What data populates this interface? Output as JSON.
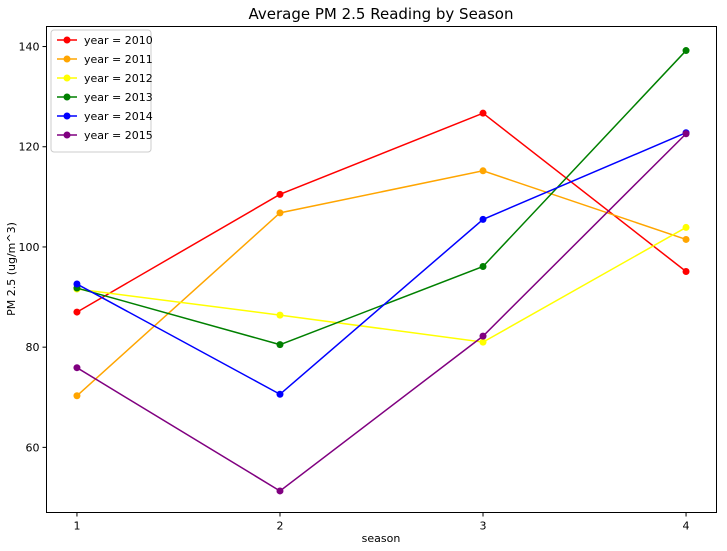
{
  "chart_data": {
    "type": "line",
    "title": "Average PM 2.5 Reading by Season",
    "xlabel": "season",
    "ylabel": "PM 2.5 (ug/m^3)",
    "x": [
      1,
      2,
      3,
      4
    ],
    "xlim": [
      0.85,
      4.15
    ],
    "ylim": [
      47,
      144
    ],
    "xticks": [
      1,
      2,
      3,
      4
    ],
    "yticks": [
      60,
      80,
      100,
      120,
      140
    ],
    "grid": false,
    "legend_position": "top-left",
    "series": [
      {
        "name": "year = 2010",
        "color": "#ff0000",
        "values": [
          87.0,
          110.5,
          126.7,
          95.1
        ]
      },
      {
        "name": "year = 2011",
        "color": "#ffa500",
        "values": [
          70.3,
          106.8,
          115.2,
          101.5
        ]
      },
      {
        "name": "year = 2012",
        "color": "#ffff00",
        "values": [
          91.6,
          86.4,
          81.0,
          103.9
        ]
      },
      {
        "name": "year = 2013",
        "color": "#008000",
        "values": [
          91.8,
          80.5,
          96.1,
          139.2
        ]
      },
      {
        "name": "year = 2014",
        "color": "#0000ff",
        "values": [
          92.6,
          70.6,
          105.5,
          122.8
        ]
      },
      {
        "name": "year = 2015",
        "color": "#800080",
        "values": [
          75.9,
          51.3,
          82.2,
          122.6
        ]
      }
    ]
  }
}
